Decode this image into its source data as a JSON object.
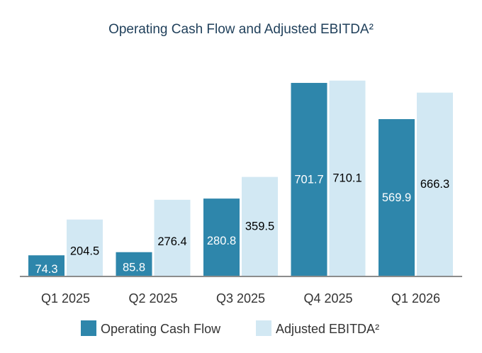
{
  "chart_data": {
    "type": "bar",
    "title": "Operating Cash Flow and Adjusted EBITDA²",
    "xlabel": "",
    "ylabel": "",
    "categories": [
      "Q1 2025",
      "Q2 2025",
      "Q3 2025",
      "Q4 2025",
      "Q1 2026"
    ],
    "series": [
      {
        "name": "Operating Cash Flow",
        "values": [
          74.3,
          85.8,
          280.8,
          701.7,
          569.9
        ],
        "labels": [
          "74.3",
          "85.8",
          "280.8",
          "701.7",
          "569.9"
        ],
        "color": "#2e86ab",
        "label_color": "#ffffff"
      },
      {
        "name": "Adjusted EBITDA²",
        "values": [
          204.5,
          276.4,
          359.5,
          710.1,
          666.3
        ],
        "labels": [
          "204.5",
          "276.4",
          "359.5",
          "710.1",
          "666.3"
        ],
        "color": "#d2e8f3",
        "label_color": "#000000"
      }
    ],
    "ylim": [
      0,
      750
    ],
    "grid": false,
    "y_axis_visible": false,
    "legend_position": "bottom"
  }
}
